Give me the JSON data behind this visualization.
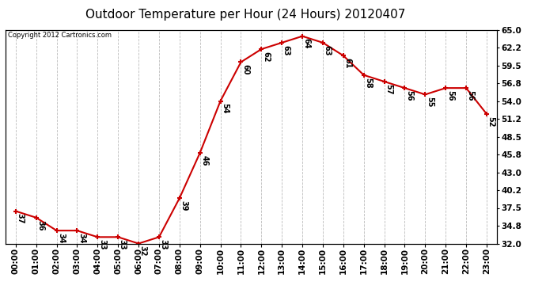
{
  "title": "Outdoor Temperature per Hour (24 Hours) 20120407",
  "copyright_text": "Copyright 2012 Cartronics.com",
  "hours": [
    "00:00",
    "01:00",
    "02:00",
    "03:00",
    "04:00",
    "05:00",
    "06:00",
    "07:00",
    "08:00",
    "09:00",
    "10:00",
    "11:00",
    "12:00",
    "13:00",
    "14:00",
    "15:00",
    "16:00",
    "17:00",
    "18:00",
    "19:00",
    "20:00",
    "21:00",
    "22:00",
    "23:00"
  ],
  "temperatures": [
    37,
    36,
    34,
    34,
    33,
    33,
    32,
    33,
    39,
    46,
    54,
    60,
    62,
    63,
    64,
    63,
    61,
    58,
    57,
    56,
    55,
    56,
    56,
    52
  ],
  "line_color": "#cc0000",
  "marker_color": "#cc0000",
  "bg_color": "#ffffff",
  "grid_color": "#bbbbbb",
  "title_fontsize": 11,
  "tick_label_fontsize": 7.5,
  "annotation_fontsize": 7,
  "ylim_min": 32.0,
  "ylim_max": 65.0,
  "yticks_right": [
    32.0,
    34.8,
    37.5,
    40.2,
    43.0,
    45.8,
    48.5,
    51.2,
    54.0,
    56.8,
    59.5,
    62.2,
    65.0
  ]
}
